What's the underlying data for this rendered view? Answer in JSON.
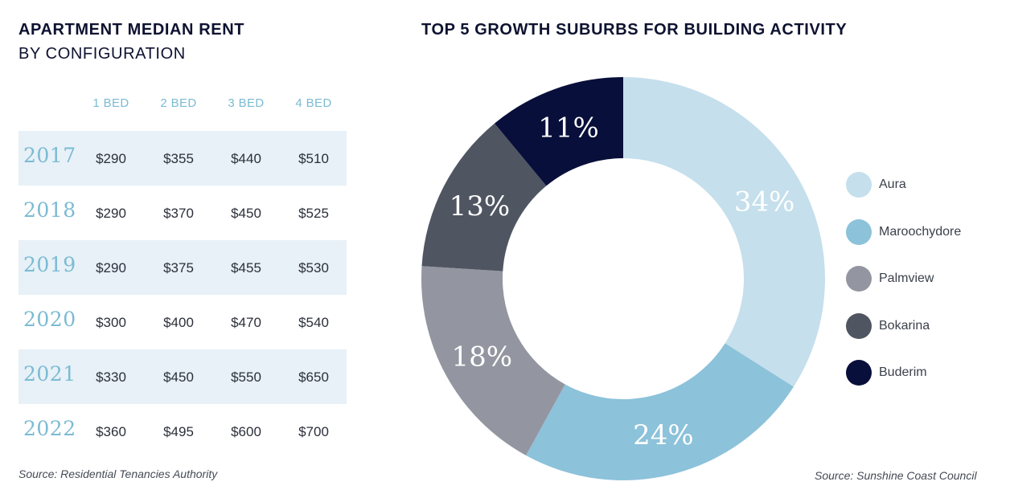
{
  "table": {
    "title_line1": "APARTMENT MEDIAN RENT",
    "title_line2": "BY CONFIGURATION",
    "columns": [
      "1 BED",
      "2 BED",
      "3 BED",
      "4 BED"
    ],
    "rows": [
      {
        "year": "2017",
        "values": [
          "$290",
          "$355",
          "$440",
          "$510"
        ]
      },
      {
        "year": "2018",
        "values": [
          "$290",
          "$370",
          "$450",
          "$525"
        ]
      },
      {
        "year": "2019",
        "values": [
          "$290",
          "$375",
          "$455",
          "$530"
        ]
      },
      {
        "year": "2020",
        "values": [
          "$300",
          "$400",
          "$470",
          "$540"
        ]
      },
      {
        "year": "2021",
        "values": [
          "$330",
          "$450",
          "$550",
          "$650"
        ]
      },
      {
        "year": "2022",
        "values": [
          "$360",
          "$495",
          "$600",
          "$700"
        ]
      }
    ],
    "source": "Source: Residential Tenancies Authority"
  },
  "chart_data": {
    "type": "pie",
    "title": "TOP 5 GROWTH SUBURBS FOR BUILDING ACTIVITY",
    "donut": true,
    "categories": [
      "Aura",
      "Maroochydore",
      "Palmview",
      "Bokarina",
      "Buderim"
    ],
    "values": [
      34,
      24,
      18,
      13,
      11
    ],
    "labels": [
      "34%",
      "24%",
      "18%",
      "13%",
      "11%"
    ],
    "colors": [
      "#c5dfec",
      "#8cc2da",
      "#9396a0",
      "#4f5561",
      "#080f3a"
    ],
    "legend_position": "right",
    "source": "Source: Sunshine Coast Council"
  }
}
